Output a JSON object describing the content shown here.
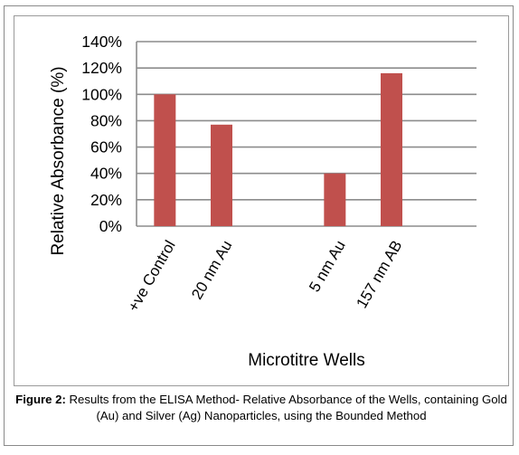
{
  "chart_data": {
    "type": "bar",
    "categories": [
      "+ve Control",
      "20 nm Au",
      "",
      "5 nm Au",
      "157 nm AB",
      ""
    ],
    "values": [
      100,
      77,
      null,
      40,
      116,
      null
    ],
    "ylabel": "Relative Absorbance (%)",
    "xlabel": "Microtitre Wells",
    "ylim": [
      0,
      140
    ],
    "yticks": [
      "0%",
      "20%",
      "40%",
      "60%",
      "80%",
      "100%",
      "120%",
      "140%"
    ],
    "grid": true,
    "bar_color": "#c0504d"
  },
  "caption": {
    "label": "Figure 2:",
    "text": " Results from the ELISA Method- Relative Absorbance of the Wells, containing Gold (Au) and Silver (Ag) Nanoparticles, using the Bounded Method"
  }
}
